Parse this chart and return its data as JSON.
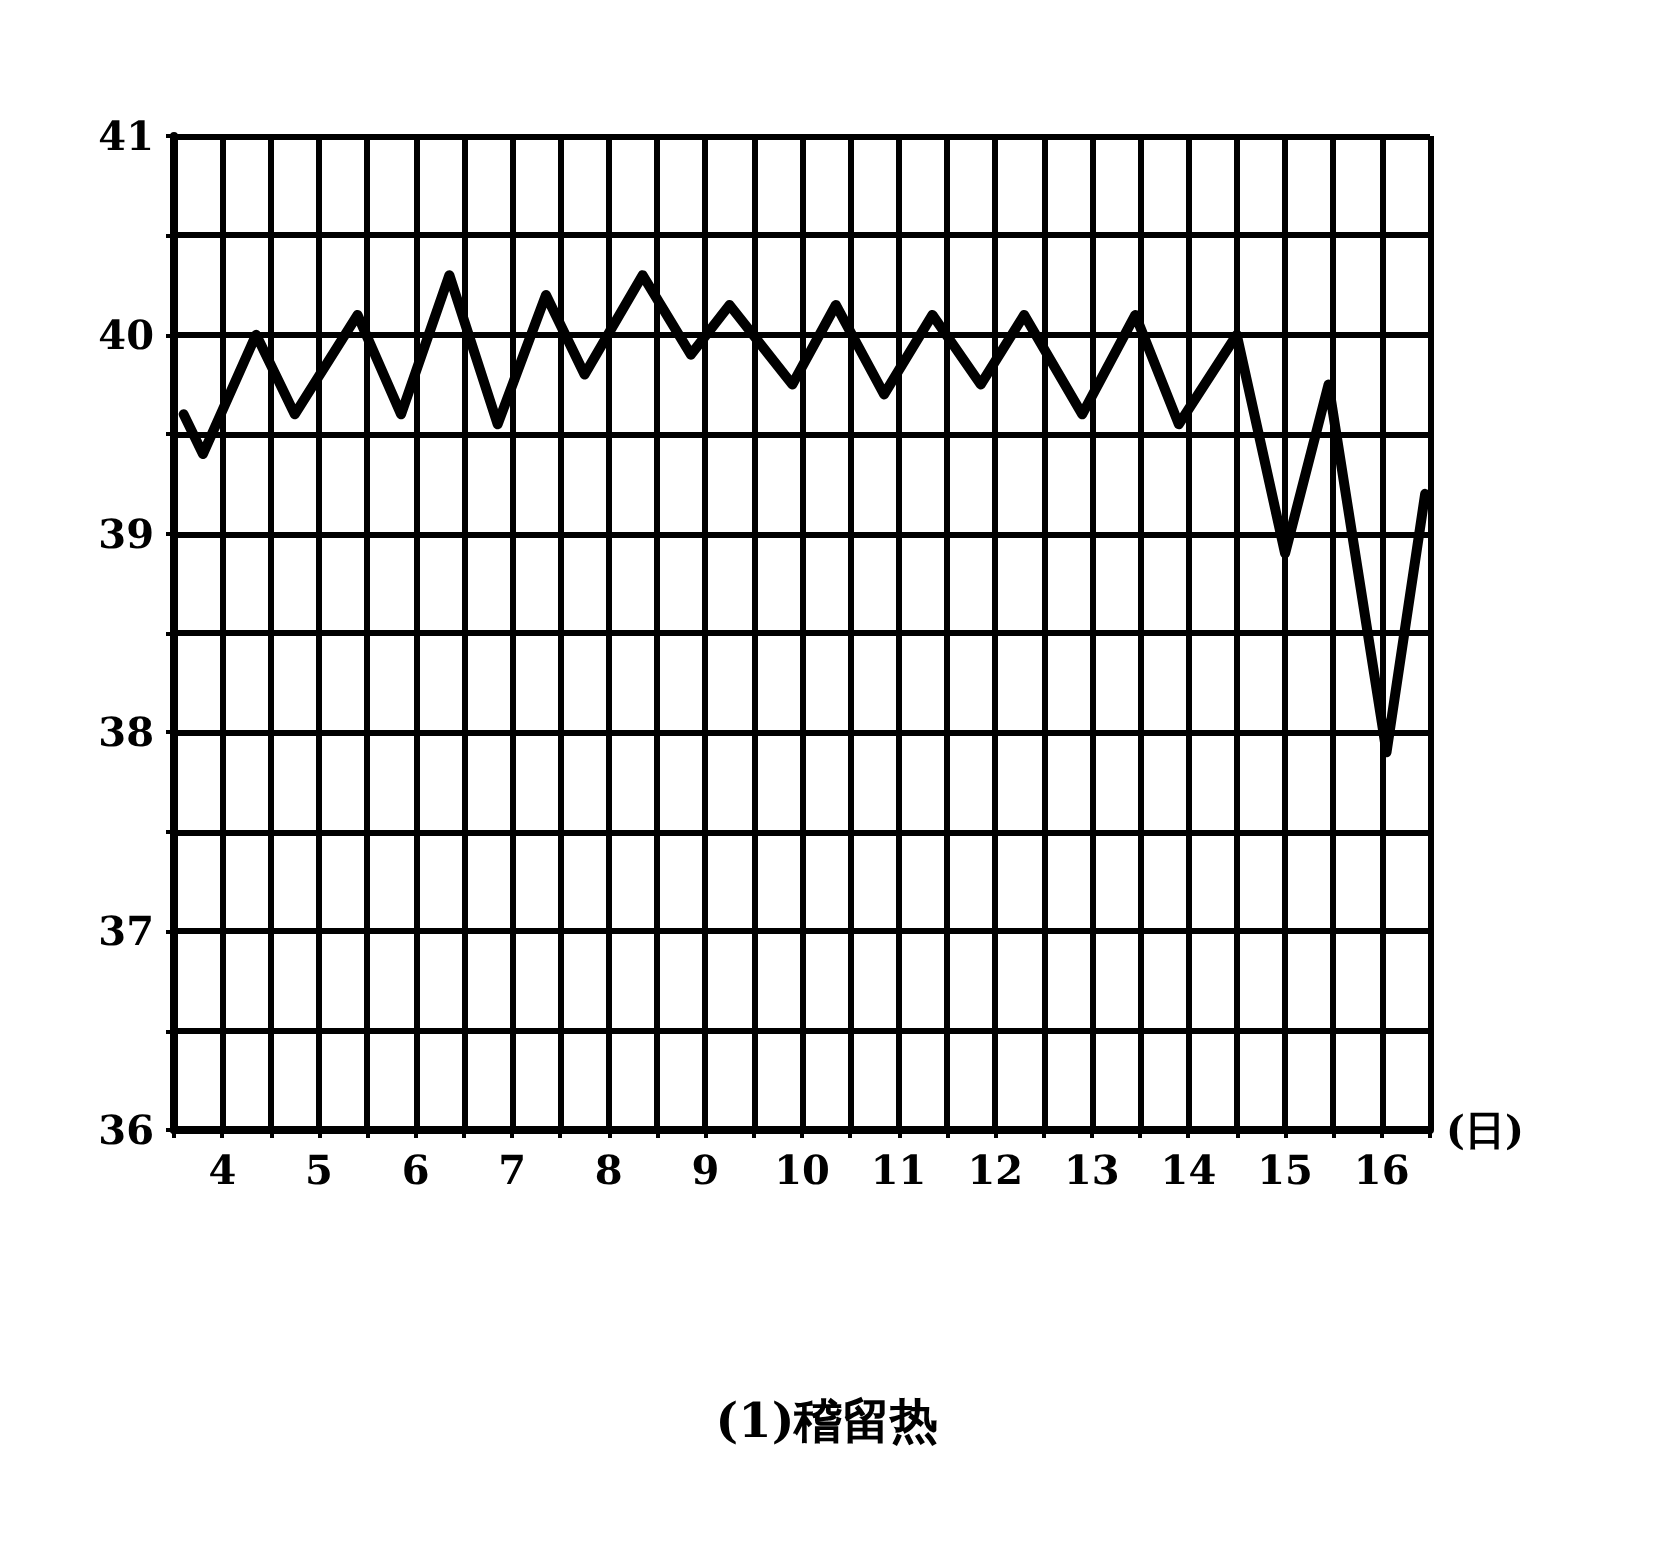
{
  "chart_data": {
    "type": "line",
    "title": "(1)稽留热",
    "xlabel": "(日)",
    "series": [
      {
        "color": "#000000",
        "x": [
          3.6,
          3.8,
          4.35,
          4.75,
          5.4,
          5.85,
          6.35,
          6.85,
          7.35,
          7.75,
          8.35,
          8.85,
          9.25,
          9.9,
          10.35,
          10.85,
          11.35,
          11.85,
          12.3,
          12.9,
          13.45,
          13.9,
          14.5,
          15.0,
          15.45,
          16.05,
          16.45
        ],
        "values": [
          39.6,
          39.4,
          40.0,
          39.6,
          40.1,
          39.6,
          40.3,
          39.55,
          40.2,
          39.8,
          40.3,
          39.9,
          40.15,
          39.75,
          40.15,
          39.7,
          40.1,
          39.75,
          40.1,
          39.6,
          40.1,
          39.55,
          40.0,
          38.9,
          39.75,
          37.9,
          39.2
        ]
      }
    ],
    "xlim": [
      3.5,
      16.5
    ],
    "xticks": [
      {
        "value": 3.5,
        "label": null
      },
      4,
      {
        "value": 4.5,
        "label": null
      },
      5,
      {
        "value": 5.5,
        "label": null
      },
      6,
      {
        "value": 6.5,
        "label": null
      },
      7,
      {
        "value": 7.5,
        "label": null
      },
      8,
      {
        "value": 8.5,
        "label": null
      },
      9,
      {
        "value": 9.5,
        "label": null
      },
      10,
      {
        "value": 10.5,
        "label": null
      },
      11,
      {
        "value": 11.5,
        "label": null
      },
      12,
      {
        "value": 12.5,
        "label": null
      },
      13,
      {
        "value": 13.5,
        "label": null
      },
      14,
      {
        "value": 14.5,
        "label": null
      },
      15,
      {
        "value": 15.5,
        "label": null
      },
      16,
      {
        "value": 16.5,
        "label": null
      }
    ],
    "ylim": [
      36,
      41
    ],
    "yticks": [
      36,
      {
        "value": 36.5,
        "label": null
      },
      37,
      {
        "value": 37.5,
        "label": null
      },
      38,
      {
        "value": 38.5,
        "label": null
      },
      39,
      {
        "value": 39.5,
        "label": null
      },
      40,
      {
        "value": 40.5,
        "label": null
      },
      41
    ],
    "grid": true,
    "marker": "none",
    "line_style": "solid"
  }
}
